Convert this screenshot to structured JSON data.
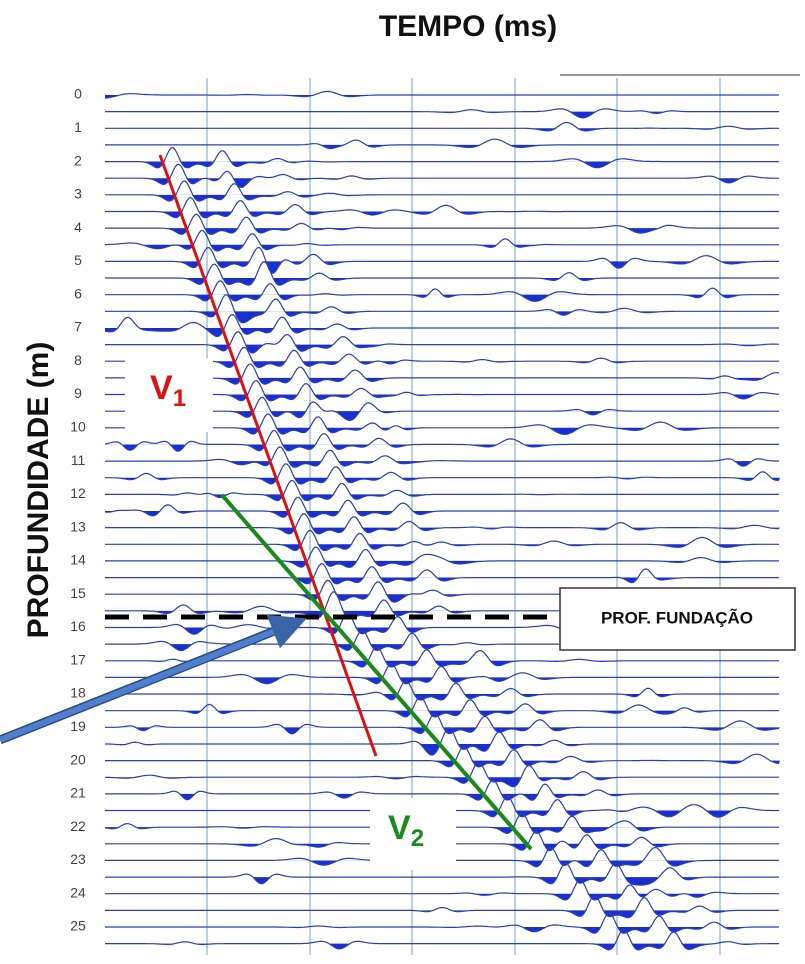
{
  "title": "TEMPO (ms)",
  "y_axis_label": "PROFUNDIDADE (m)",
  "depth_labels": [
    0,
    1,
    2,
    3,
    4,
    5,
    6,
    7,
    8,
    9,
    10,
    11,
    12,
    13,
    14,
    15,
    16,
    17,
    18,
    19,
    20,
    21,
    22,
    23,
    24,
    25
  ],
  "annotations": {
    "v1": {
      "letter": "V",
      "subscript": "1"
    },
    "v2": {
      "letter": "V",
      "subscript": "2"
    },
    "foundation": "PROF. FUNDAÇÃO"
  }
}
